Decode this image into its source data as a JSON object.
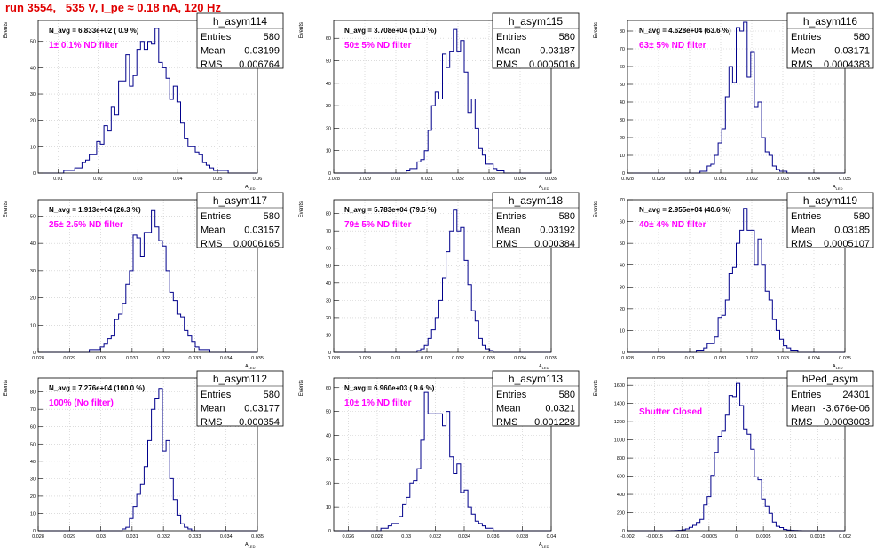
{
  "page": {
    "title": "run 3554,   535 V, I_pe ≈ 0.18 nA, 120 Hz",
    "colors": {
      "histogram": "#00008b",
      "title": "#e00000",
      "annotation": "#ff00ff",
      "grid": "#c8c8c8"
    }
  },
  "chart_data": [
    {
      "type": "histogram",
      "name": "h_asym114",
      "ylabel": "Events",
      "xlabel": "A_LED",
      "stats": {
        "entries_label": "Entries",
        "entries": "580",
        "mean_label": "Mean",
        "mean": "0.03199",
        "rms_label": "RMS",
        "rms": "0.006764"
      },
      "navg": "N_avg = 6.833e+02 ( 0.9 %)",
      "annotation": "1± 0.1% ND filter",
      "xlim": [
        0.005,
        0.06
      ],
      "ylim": [
        0,
        58
      ],
      "xticks": [
        0.01,
        0.02,
        0.03,
        0.04,
        0.05,
        0.06
      ],
      "xtick_labels": [
        "0.01",
        "0.02",
        "0.03",
        "0.04",
        "0.05",
        "0.06"
      ],
      "yticks": [
        0,
        10,
        20,
        30,
        40,
        50
      ],
      "mean_val": 0.03199,
      "rms_val": 0.006764,
      "peak": 55,
      "seed": 114
    },
    {
      "type": "histogram",
      "name": "h_asym115",
      "ylabel": "Events",
      "xlabel": "A_LED",
      "stats": {
        "entries_label": "Entries",
        "entries": "580",
        "mean_label": "Mean",
        "mean": "0.03187",
        "rms_label": "RMS",
        "rms": "0.0005016"
      },
      "navg": "N_avg = 3.708e+04 (51.0 %)",
      "annotation": "50± 5% ND filter",
      "xlim": [
        0.028,
        0.035
      ],
      "ylim": [
        0,
        68
      ],
      "xticks": [
        0.028,
        0.029,
        0.03,
        0.031,
        0.032,
        0.033,
        0.034,
        0.035
      ],
      "xtick_labels": [
        "0.028",
        "0.029",
        "0.03",
        "0.031",
        "0.032",
        "0.033",
        "0.034",
        "0.035"
      ],
      "yticks": [
        0,
        10,
        20,
        30,
        40,
        50,
        60
      ],
      "mean_val": 0.03187,
      "rms_val": 0.0005016,
      "peak": 64,
      "seed": 115
    },
    {
      "type": "histogram",
      "name": "h_asym116",
      "ylabel": "Events",
      "xlabel": "A_LED",
      "stats": {
        "entries_label": "Entries",
        "entries": "580",
        "mean_label": "Mean",
        "mean": "0.03171",
        "rms_label": "RMS",
        "rms": "0.0004383"
      },
      "navg": "N_avg = 4.628e+04 (63.6 %)",
      "annotation": "63± 5% ND filter",
      "xlim": [
        0.028,
        0.035
      ],
      "ylim": [
        0,
        86
      ],
      "xticks": [
        0.028,
        0.029,
        0.03,
        0.031,
        0.032,
        0.033,
        0.034,
        0.035
      ],
      "xtick_labels": [
        "0.028",
        "0.029",
        "0.03",
        "0.031",
        "0.032",
        "0.033",
        "0.034",
        "0.035"
      ],
      "yticks": [
        0,
        10,
        20,
        30,
        40,
        50,
        60,
        70,
        80
      ],
      "mean_val": 0.03171,
      "rms_val": 0.0004383,
      "peak": 80,
      "seed": 116
    },
    {
      "type": "histogram",
      "name": "h_asym117",
      "ylabel": "Events",
      "xlabel": "A_LED",
      "stats": {
        "entries_label": "Entries",
        "entries": "580",
        "mean_label": "Mean",
        "mean": "0.03157",
        "rms_label": "RMS",
        "rms": "0.0006165"
      },
      "navg": "N_avg = 1.913e+04 (26.3 %)",
      "annotation": "25± 2.5% ND filter",
      "xlim": [
        0.028,
        0.035
      ],
      "ylim": [
        0,
        56
      ],
      "xticks": [
        0.028,
        0.029,
        0.03,
        0.031,
        0.032,
        0.033,
        0.034,
        0.035
      ],
      "xtick_labels": [
        "0.028",
        "0.029",
        "0.03",
        "0.031",
        "0.032",
        "0.033",
        "0.034",
        "0.035"
      ],
      "yticks": [
        0,
        10,
        20,
        30,
        40,
        50
      ],
      "mean_val": 0.03157,
      "rms_val": 0.0006165,
      "peak": 52,
      "seed": 117
    },
    {
      "type": "histogram",
      "name": "h_asym118",
      "ylabel": "Events",
      "xlabel": "A_LED",
      "stats": {
        "entries_label": "Entries",
        "entries": "580",
        "mean_label": "Mean",
        "mean": "0.03192",
        "rms_label": "RMS",
        "rms": "0.000384"
      },
      "navg": "N_avg = 5.783e+04 (79.5 %)",
      "annotation": "79± 5% ND filter",
      "xlim": [
        0.028,
        0.035
      ],
      "ylim": [
        0,
        88
      ],
      "xticks": [
        0.028,
        0.029,
        0.03,
        0.031,
        0.032,
        0.033,
        0.034,
        0.035
      ],
      "xtick_labels": [
        "0.028",
        "0.029",
        "0.03",
        "0.031",
        "0.032",
        "0.033",
        "0.034",
        "0.035"
      ],
      "yticks": [
        0,
        10,
        20,
        30,
        40,
        50,
        60,
        70,
        80
      ],
      "mean_val": 0.03192,
      "rms_val": 0.000384,
      "peak": 82,
      "seed": 118
    },
    {
      "type": "histogram",
      "name": "h_asym119",
      "ylabel": "Events",
      "xlabel": "A_LED",
      "stats": {
        "entries_label": "Entries",
        "entries": "580",
        "mean_label": "Mean",
        "mean": "0.03185",
        "rms_label": "RMS",
        "rms": "0.0005107"
      },
      "navg": "N_avg = 2.955e+04 (40.6 %)",
      "annotation": "40± 4% ND filter",
      "xlim": [
        0.028,
        0.035
      ],
      "ylim": [
        0,
        70
      ],
      "xticks": [
        0.028,
        0.029,
        0.03,
        0.031,
        0.032,
        0.033,
        0.034,
        0.035
      ],
      "xtick_labels": [
        "0.028",
        "0.029",
        "0.03",
        "0.031",
        "0.032",
        "0.033",
        "0.034",
        "0.035"
      ],
      "yticks": [
        0,
        10,
        20,
        30,
        40,
        50,
        60,
        70
      ],
      "mean_val": 0.03185,
      "rms_val": 0.0005107,
      "peak": 66,
      "seed": 119
    },
    {
      "type": "histogram",
      "name": "h_asym112",
      "ylabel": "Events",
      "xlabel": "A_LED",
      "stats": {
        "entries_label": "Entries",
        "entries": "580",
        "mean_label": "Mean",
        "mean": "0.03177",
        "rms_label": "RMS",
        "rms": "0.000354"
      },
      "navg": "N_avg = 7.276e+04 (100.0 %)",
      "annotation": "100% (No filter)",
      "xlim": [
        0.028,
        0.035
      ],
      "ylim": [
        0,
        88
      ],
      "xticks": [
        0.028,
        0.029,
        0.03,
        0.031,
        0.032,
        0.033,
        0.034,
        0.035
      ],
      "xtick_labels": [
        "0.028",
        "0.029",
        "0.03",
        "0.031",
        "0.032",
        "0.033",
        "0.034",
        "0.035"
      ],
      "yticks": [
        0,
        10,
        20,
        30,
        40,
        50,
        60,
        70,
        80
      ],
      "mean_val": 0.03177,
      "rms_val": 0.000354,
      "peak": 82,
      "seed": 112
    },
    {
      "type": "histogram",
      "name": "h_asym113",
      "ylabel": "Events",
      "xlabel": "A_LED",
      "stats": {
        "entries_label": "Entries",
        "entries": "580",
        "mean_label": "Mean",
        "mean": "0.0321",
        "rms_label": "RMS",
        "rms": "0.001228"
      },
      "navg": "N_avg = 6.960e+03 ( 9.6 %)",
      "annotation": "10± 1% ND filter",
      "xlim": [
        0.025,
        0.04
      ],
      "ylim": [
        0,
        64
      ],
      "xticks": [
        0.026,
        0.028,
        0.03,
        0.032,
        0.034,
        0.036,
        0.038,
        0.04
      ],
      "xtick_labels": [
        "0.026",
        "0.028",
        "0.03",
        "0.032",
        "0.034",
        "0.036",
        "0.038",
        "0.04"
      ],
      "yticks": [
        0,
        10,
        20,
        30,
        40,
        50,
        60
      ],
      "mean_val": 0.0321,
      "rms_val": 0.001228,
      "peak": 58,
      "seed": 113
    },
    {
      "type": "histogram",
      "name": "hPed_asym",
      "ylabel": "Events",
      "xlabel": "",
      "stats": {
        "entries_label": "Entries",
        "entries": "24301",
        "mean_label": "Mean",
        "mean": "-3.676e-06",
        "rms_label": "RMS",
        "rms": "0.0003003"
      },
      "navg": "",
      "annotation": "Shutter Closed",
      "xlim": [
        -0.002,
        0.002
      ],
      "ylim": [
        0,
        1680
      ],
      "xticks": [
        -0.002,
        -0.0015,
        -0.001,
        -0.0005,
        0,
        0.0005,
        0.001,
        0.0015,
        0.002
      ],
      "xtick_labels": [
        "-0.002",
        "-0.0015",
        "-0.001",
        "-0.0005",
        "0",
        "0.0005",
        "0.001",
        "0.0015",
        "0.002"
      ],
      "yticks": [
        0,
        200,
        400,
        600,
        800,
        1000,
        1200,
        1400,
        1600
      ],
      "mean_val": -3.676e-06,
      "rms_val": 0.0003003,
      "peak": 1620,
      "seed": 100
    }
  ]
}
